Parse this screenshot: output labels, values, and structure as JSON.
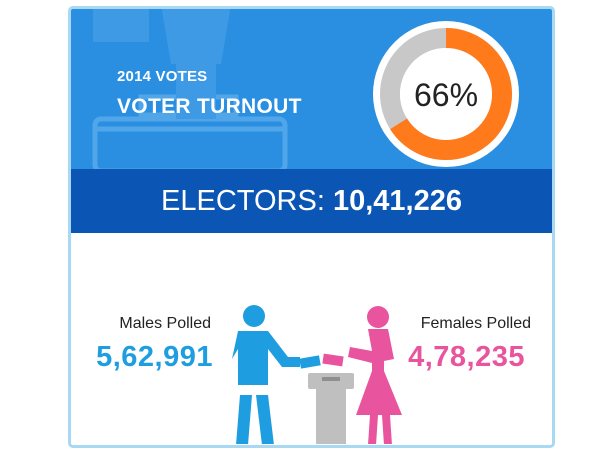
{
  "header": {
    "subtitle": "2014 VOTES",
    "title": "VOTER TURNOUT",
    "turnout_label": "66%",
    "turnout_fraction": 0.66
  },
  "electors": {
    "label": "ELECTORS:",
    "value": "10,41,226"
  },
  "males": {
    "label": "Males Polled",
    "value": "5,62,991"
  },
  "females": {
    "label": "Females Polled",
    "value": "4,78,235"
  },
  "colors": {
    "header_bg": "#2a8fe0",
    "band_bg": "#0b55b5",
    "donut_fill": "#ff7a1a",
    "donut_track": "#c8c8c8",
    "male": "#1e9ee0",
    "female": "#e8559e",
    "ballot_box": "#bfbfbf"
  },
  "icons": {
    "watermark": "ballot-box-watermark-icon",
    "male": "male-voter-icon",
    "female": "female-voter-icon",
    "box": "ballot-box-icon"
  }
}
